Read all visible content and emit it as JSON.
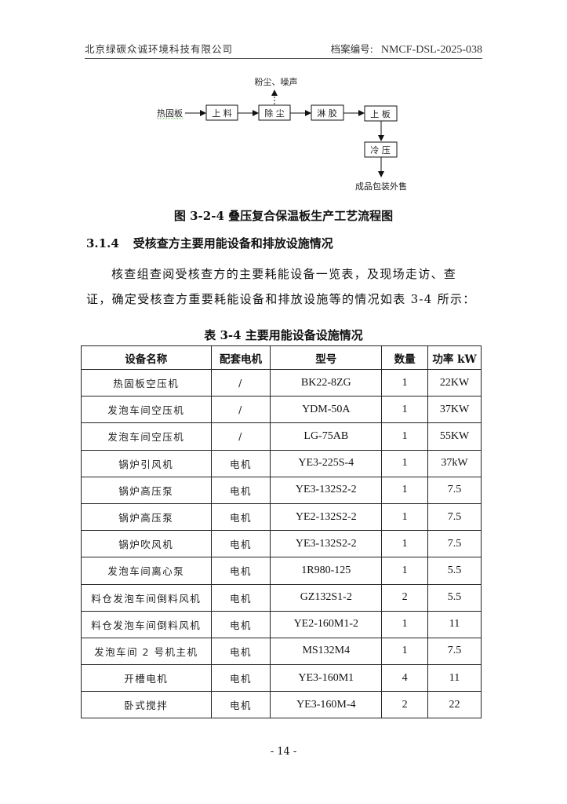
{
  "header": {
    "company": "北京绿碳众诚环境科技有限公司",
    "archive_label": "档案编号:",
    "archive_no": "NMCF-DSL-2025-038"
  },
  "flow": {
    "input": "热固板",
    "steps": [
      "上 料",
      "除 尘",
      "淋 胶",
      "上 板",
      "冷 压"
    ],
    "emission": "粉尘、噪声",
    "output": "成品包装外售"
  },
  "figure_caption": "图 3-2-4 叠压复合保温板生产工艺流程图",
  "section": {
    "number": "3.1.4",
    "title": "受核查方主要用能设备和排放设施情况"
  },
  "paragraph_line1": "核查组查阅受核查方的主要耗能设备一览表，及现场走访、查",
  "paragraph_line2": "证，确定受核查方重要耗能设备和排放设施等的情况如表 3-4 所示：",
  "table": {
    "caption": "表 3-4  主要用能设备设施情况",
    "headers": [
      "设备名称",
      "配套电机",
      "型号",
      "数量",
      "功率 kW"
    ],
    "rows": [
      [
        "热固板空压机",
        "/",
        "BK22-8ZG",
        "1",
        "22KW"
      ],
      [
        "发泡车间空压机",
        "/",
        "YDM-50A",
        "1",
        "37KW"
      ],
      [
        "发泡车间空压机",
        "/",
        "LG-75AB",
        "1",
        "55KW"
      ],
      [
        "锅炉引风机",
        "电机",
        "YE3-225S-4",
        "1",
        "37kW"
      ],
      [
        "锅炉高压泵",
        "电机",
        "YE3-132S2-2",
        "1",
        "7.5"
      ],
      [
        "锅炉高压泵",
        "电机",
        "YE2-132S2-2",
        "1",
        "7.5"
      ],
      [
        "锅炉吹风机",
        "电机",
        "YE3-132S2-2",
        "1",
        "7.5"
      ],
      [
        "发泡车间离心泵",
        "电机",
        "1R980-125",
        "1",
        "5.5"
      ],
      [
        "料仓发泡车间倒料风机",
        "电机",
        "GZ132S1-2",
        "2",
        "5.5"
      ],
      [
        "料仓发泡车间倒料风机",
        "电机",
        "YE2-160M1-2",
        "1",
        "11"
      ],
      [
        "发泡车间 2 号机主机",
        "电机",
        "MS132M4",
        "1",
        "7.5"
      ],
      [
        "开槽电机",
        "电机",
        "YE3-160M1",
        "4",
        "11"
      ],
      [
        "卧式搅拌",
        "电机",
        "YE3-160M-4",
        "2",
        "22"
      ]
    ]
  },
  "page_number": "- 14 -"
}
